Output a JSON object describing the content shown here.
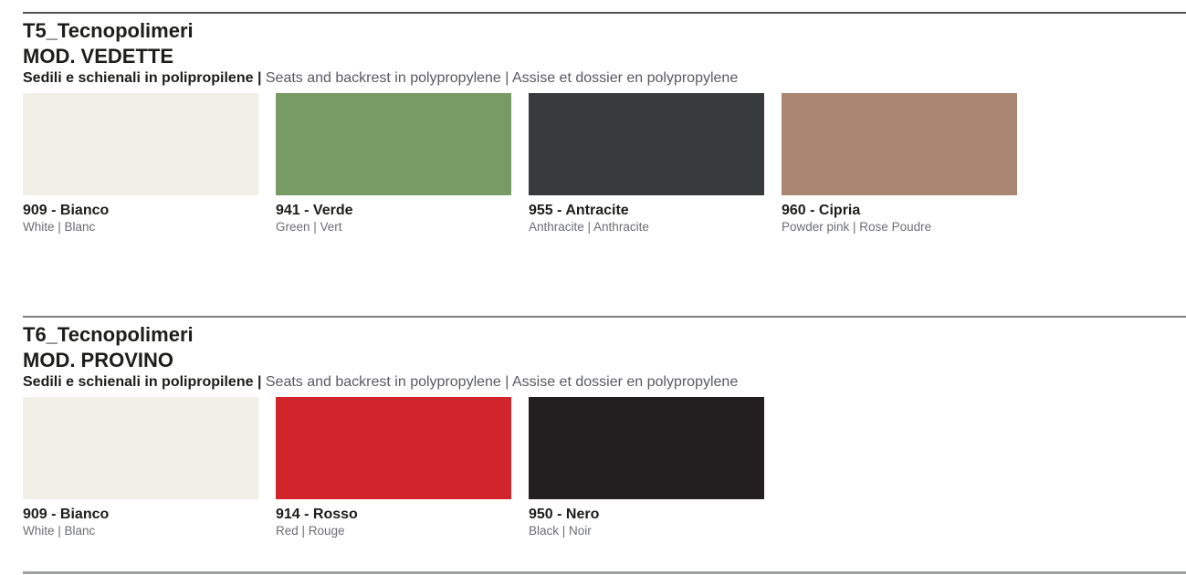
{
  "page": {
    "background": "#ffffff",
    "divider_top_color": "#515256",
    "divider_mid_color": "#7e8083",
    "divider_bottom_color": "#9ea0a3"
  },
  "sections": [
    {
      "code": "T5_Tecnopolimeri",
      "model": "MOD. VEDETTE",
      "subtitle_bold": "Sedili e schienali in polipropilene |",
      "subtitle_rest": "Seats and backrest in polypropylene | Assise et dossier en polypropylene",
      "swatches": [
        {
          "name": "909 - Bianco",
          "translation": "White | Blanc",
          "color": "#f1f0e7"
        },
        {
          "name": "941 - Verde",
          "translation": "Green | Vert",
          "color": "#789a64"
        },
        {
          "name": "955 - Antracite",
          "translation": "Anthracite | Anthracite",
          "color": "#363a3b"
        },
        {
          "name": "960 - Cipria",
          "translation": "Powder pink | Rose Poudre",
          "color": "#ab8672"
        }
      ]
    },
    {
      "code": "T6_Tecnopolimeri",
      "model": "MOD. PROVINO",
      "subtitle_bold": "Sedili e schienali in polipropilene |",
      "subtitle_rest": "Seats and backrest in polypropylene | Assise et dossier en polypropylene",
      "swatches": [
        {
          "name": "909 - Bianco",
          "translation": "White | Blanc",
          "color": "#f1f0e7"
        },
        {
          "name": "914 - Rosso",
          "translation": "Red | Rouge",
          "color": "#d1242b"
        },
        {
          "name": "950 - Nero",
          "translation": "Black | Noir",
          "color": "#231f20"
        }
      ]
    }
  ]
}
